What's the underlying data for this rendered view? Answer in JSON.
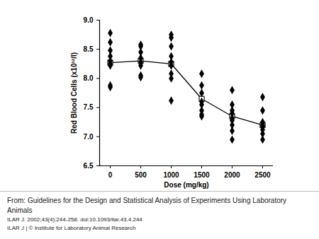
{
  "chart_data": {
    "type": "scatter",
    "x_label": "Dose (mg/kg)",
    "y_label": "Red Blood Cells (x10¹²/l)",
    "xlim": [
      -175,
      2675
    ],
    "xticks": [
      0,
      500,
      1000,
      1500,
      2000,
      2500
    ],
    "ylim": [
      6.5,
      9.0
    ],
    "yticks": [
      {
        "value": 6.5,
        "label": "6.5"
      },
      {
        "value": 7,
        "label": "7.0"
      },
      {
        "value": 7.5,
        "label": "7.5"
      },
      {
        "value": 8,
        "label": "8.0"
      },
      {
        "value": 8.5,
        "label": "8.5"
      },
      {
        "value": 9,
        "label": "9.0"
      }
    ],
    "grid": false,
    "series": [
      {
        "type": "scatter",
        "marker": "diamond",
        "color": "#000000",
        "x": [
          0,
          0,
          0,
          0,
          0,
          0,
          0,
          0,
          0,
          500,
          500,
          500,
          500,
          500,
          500,
          500,
          500,
          1000,
          1000,
          1000,
          1000,
          1000,
          1000,
          1000,
          1000,
          1000,
          1500,
          1500,
          1500,
          1500,
          1500,
          1500,
          1500,
          1500,
          2000,
          2000,
          2000,
          2000,
          2000,
          2000,
          2000,
          2000,
          2000,
          2500,
          2500,
          2500,
          2500,
          2500,
          2500,
          2500,
          2500
        ],
        "values": [
          8.78,
          8.62,
          8.48,
          8.38,
          8.3,
          8.25,
          8.22,
          7.88,
          7.85,
          8.58,
          8.55,
          8.45,
          8.35,
          8.28,
          8.22,
          8.05,
          8.02,
          8.75,
          8.7,
          8.55,
          8.38,
          8.28,
          8.22,
          8.08,
          8.0,
          7.62,
          8.08,
          7.88,
          7.75,
          7.6,
          7.55,
          7.45,
          7.38,
          7.35,
          7.8,
          7.55,
          7.45,
          7.4,
          7.32,
          7.28,
          7.2,
          7.1,
          6.95,
          7.68,
          7.45,
          7.25,
          7.2,
          7.18,
          7.12,
          7.05,
          6.95
        ]
      },
      {
        "type": "line",
        "marker": "square",
        "color": "#000000",
        "x": [
          0,
          500,
          1000,
          1500,
          2000,
          2500
        ],
        "values": [
          8.27,
          8.3,
          8.25,
          7.65,
          7.35,
          7.2
        ]
      }
    ],
    "caption": [
      "From: Guidelines for the Design and Statistical Analysis of Experiments Using Laboratory Animals",
      "ILAR J. 2002;43(4):244-258. doi:10.1093/ilar.43.4.244",
      "ILAR J | © Institute for Laboratory Animal Research"
    ]
  }
}
